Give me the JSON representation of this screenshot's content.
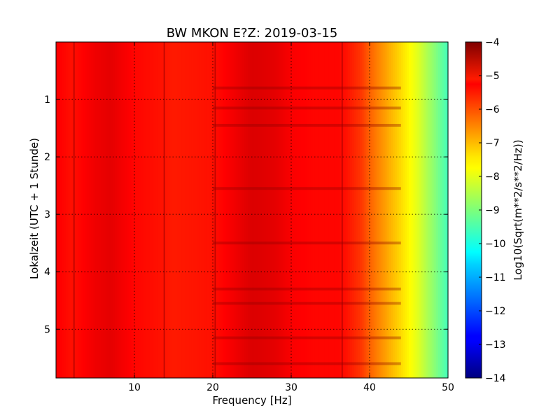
{
  "chart_data": {
    "type": "heatmap",
    "title": "BW MKON E?Z: 2019-03-15",
    "xlabel": "Frequency [Hz]",
    "ylabel": "Lokalzeit (UTC + 1 Stunde)",
    "xlim": [
      0,
      50
    ],
    "ylim": [
      5.85,
      0
    ],
    "x_ticks": [
      10,
      20,
      30,
      40,
      50
    ],
    "x_tick_labels": [
      "10",
      "20",
      "30",
      "40",
      "50"
    ],
    "y_ticks": [
      1,
      2,
      3,
      4,
      5
    ],
    "y_tick_labels": [
      "1",
      "2",
      "3",
      "4",
      "5"
    ],
    "grid": true,
    "colormap": "jet",
    "colorbar": {
      "label": "Log10(Sqrt(m**2/s**2/Hz))",
      "range": [
        -14,
        -4
      ],
      "ticks": [
        -4,
        -5,
        -6,
        -7,
        -8,
        -9,
        -10,
        -11,
        -12,
        -13,
        -14
      ],
      "tick_labels": [
        "−4",
        "−5",
        "−6",
        "−7",
        "−8",
        "−9",
        "−10",
        "−11",
        "−12",
        "−13",
        "−14"
      ]
    },
    "spectrum_profile": {
      "frequency_hz": [
        0,
        2,
        5,
        7,
        10,
        13,
        15,
        20,
        23,
        25,
        28,
        30,
        33,
        36,
        37,
        39,
        40,
        42,
        44,
        46,
        48,
        50
      ],
      "level": [
        -5.2,
        -5.4,
        -5.1,
        -5.0,
        -5.3,
        -5.4,
        -5.5,
        -5.4,
        -5.1,
        -4.9,
        -5.0,
        -5.2,
        -5.3,
        -5.3,
        -5.4,
        -5.8,
        -6.2,
        -6.8,
        -7.4,
        -8.0,
        -8.8,
        -9.6
      ]
    },
    "narrowband_lines_hz": [
      2.3,
      13.8,
      20.3,
      36.5
    ],
    "noisy_time_bands_h": [
      0.8,
      1.15,
      1.45,
      2.55,
      3.5,
      4.3,
      4.55,
      5.15,
      5.6
    ]
  }
}
